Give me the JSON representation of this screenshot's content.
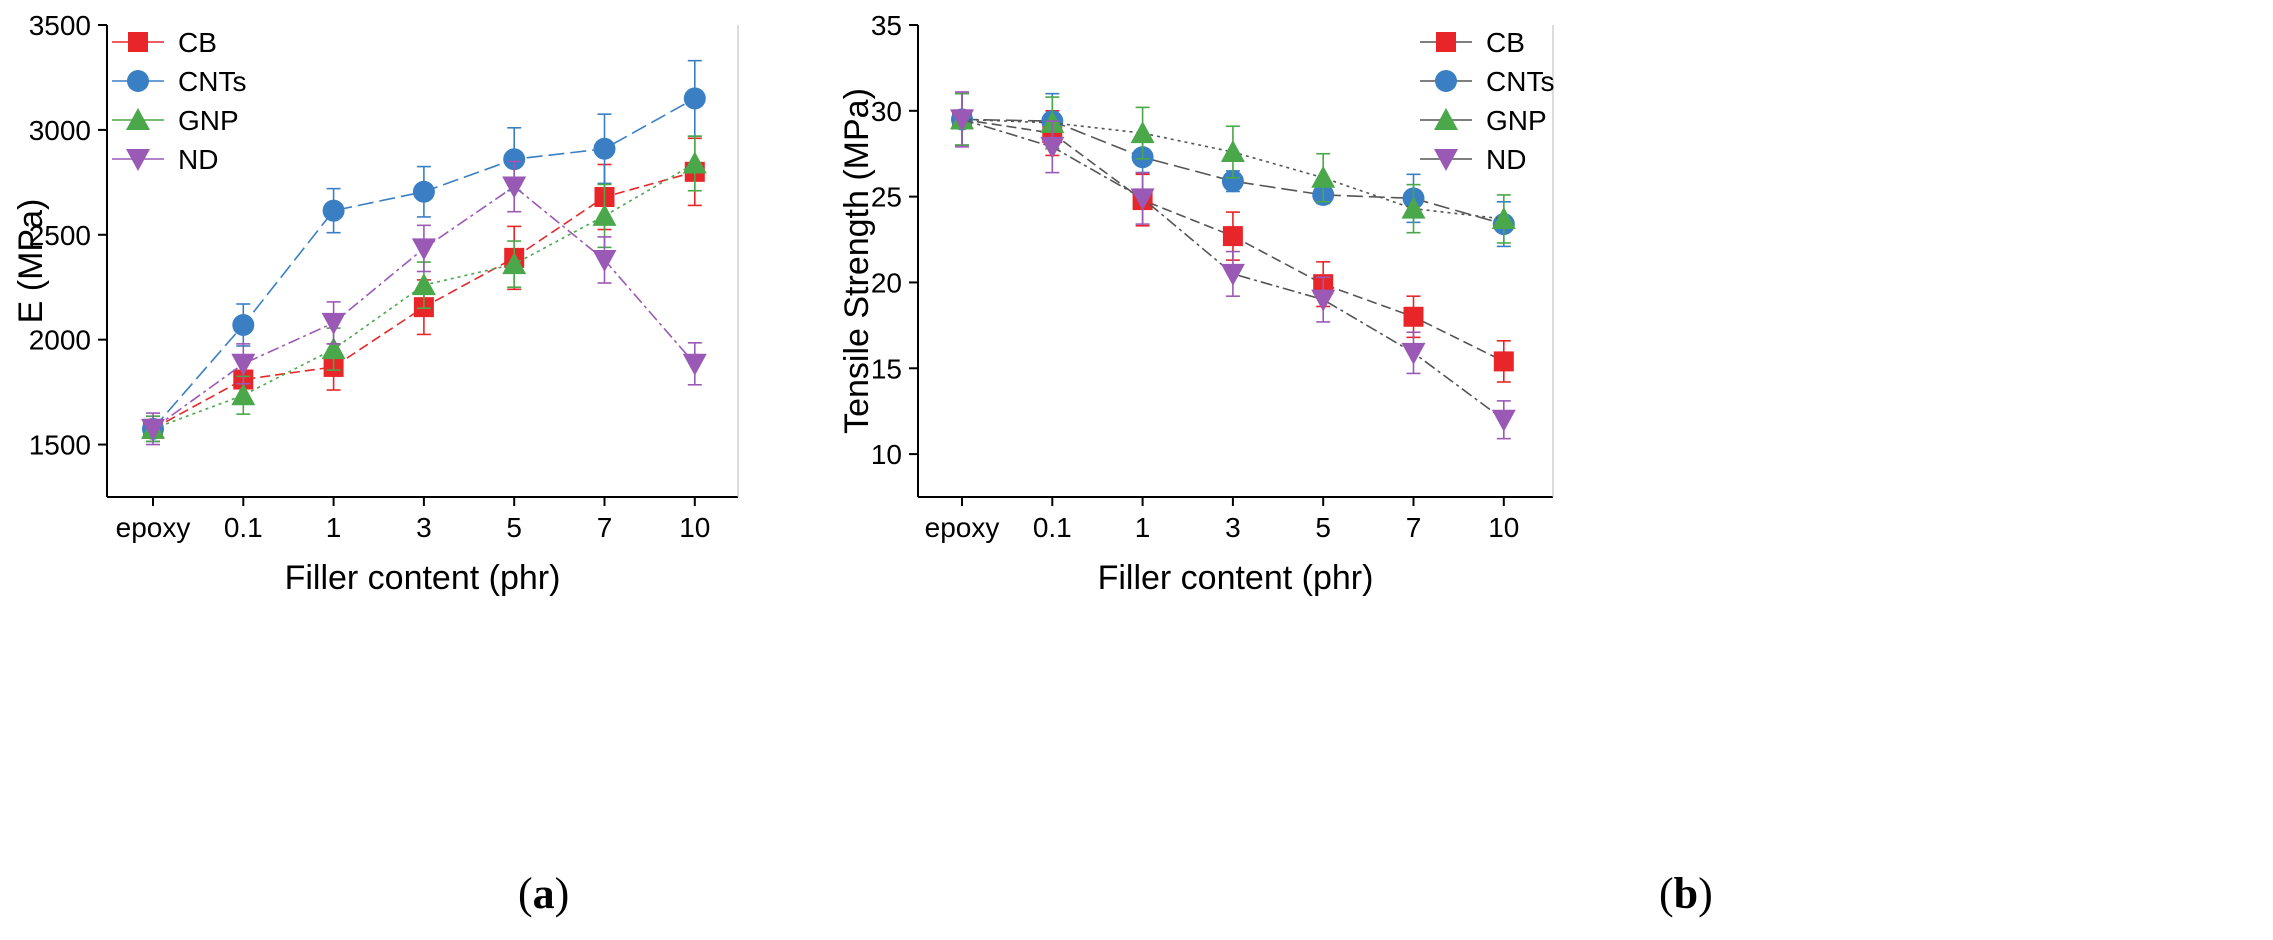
{
  "chart_data": [
    {
      "type": "line",
      "panel_label": "a",
      "xlabel": "Filler content (phr)",
      "ylabel": "E (MPa)",
      "categories": [
        "epoxy",
        "0.1",
        "1",
        "3",
        "5",
        "7",
        "10"
      ],
      "ylim": [
        1250,
        3500
      ],
      "yticks": [
        "1500",
        "2000",
        "2500",
        "3000",
        "3500"
      ],
      "legend_position": "top-left",
      "series": [
        {
          "name": "CB",
          "color": "#e8262a",
          "marker": "square",
          "dash": "dash",
          "values": [
            1575,
            1810,
            1870,
            2155,
            2390,
            2680,
            2800
          ],
          "errors": [
            60,
            100,
            110,
            130,
            150,
            155,
            160
          ]
        },
        {
          "name": "CNTs",
          "color": "#3a7fc4",
          "marker": "circle",
          "dash": "longdash",
          "values": [
            1575,
            2070,
            2615,
            2705,
            2860,
            2910,
            3150
          ],
          "errors": [
            60,
            100,
            105,
            120,
            150,
            165,
            180
          ]
        },
        {
          "name": "GNP",
          "color": "#4aa84a",
          "marker": "triangle-up",
          "dash": "dot",
          "values": [
            1575,
            1735,
            1955,
            2260,
            2360,
            2590,
            2840
          ],
          "errors": [
            60,
            90,
            100,
            110,
            110,
            150,
            130
          ]
        },
        {
          "name": "ND",
          "color": "#9b59b6",
          "marker": "triangle-down",
          "dash": "dashdot",
          "values": [
            1575,
            1885,
            2080,
            2435,
            2730,
            2380,
            1885
          ],
          "errors": [
            75,
            95,
            100,
            110,
            120,
            110,
            100
          ]
        }
      ]
    },
    {
      "type": "line",
      "panel_label": "b",
      "xlabel": "Filler content (phr)",
      "ylabel": "Tensile Strength (MPa)",
      "categories": [
        "epoxy",
        "0.1",
        "1",
        "3",
        "5",
        "7",
        "10"
      ],
      "ylim": [
        7.5,
        35
      ],
      "yticks": [
        "10",
        "15",
        "20",
        "25",
        "30",
        "35"
      ],
      "legend_position": "top-right",
      "line_color": "#555555",
      "series": [
        {
          "name": "CB",
          "color": "#e8262a",
          "marker": "square",
          "dash": "dash",
          "values": [
            29.5,
            28.7,
            24.8,
            22.7,
            19.9,
            18.0,
            15.4
          ],
          "errors": [
            1.5,
            1.3,
            1.5,
            1.4,
            1.3,
            1.2,
            1.2
          ]
        },
        {
          "name": "CNTs",
          "color": "#3a7fc4",
          "marker": "circle",
          "dash": "longdash",
          "values": [
            29.5,
            29.4,
            27.3,
            25.9,
            25.1,
            24.9,
            23.4
          ],
          "errors": [
            1.5,
            1.6,
            0.9,
            0.6,
            0.5,
            1.4,
            1.3
          ]
        },
        {
          "name": "GNP",
          "color": "#4aa84a",
          "marker": "triangle-up",
          "dash": "dot",
          "values": [
            29.5,
            29.3,
            28.7,
            27.6,
            26.1,
            24.3,
            23.7
          ],
          "errors": [
            1.5,
            1.5,
            1.5,
            1.5,
            1.4,
            1.4,
            1.4
          ]
        },
        {
          "name": "ND",
          "color": "#9b59b6",
          "marker": "triangle-down",
          "dash": "dashdot",
          "values": [
            29.5,
            27.9,
            24.9,
            20.5,
            19.0,
            15.9,
            12.0
          ],
          "errors": [
            1.6,
            1.5,
            1.5,
            1.3,
            1.3,
            1.2,
            1.1
          ]
        }
      ]
    }
  ]
}
